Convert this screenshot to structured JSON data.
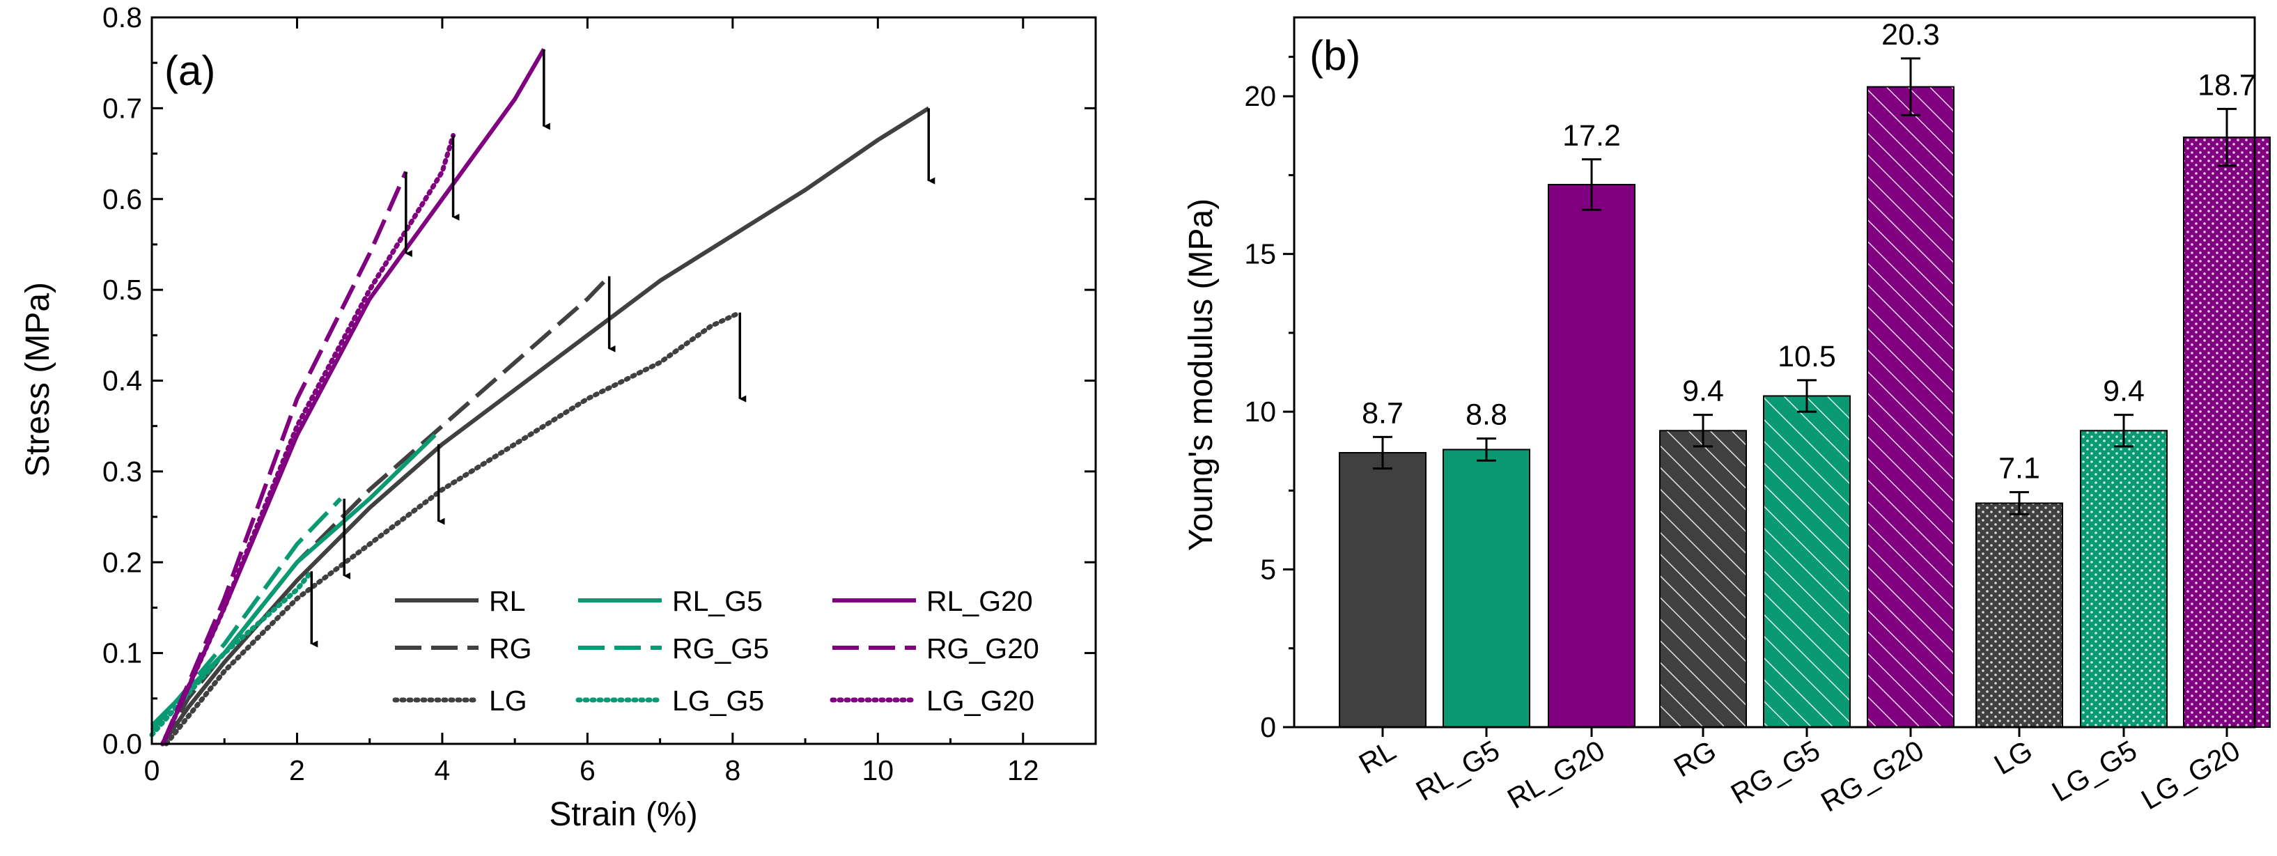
{
  "colors": {
    "RL": "#404040",
    "G5": "#0a9a73",
    "G20": "#800080",
    "arrow": "#000000"
  },
  "chart_data": [
    {
      "type": "line",
      "panel_label": "(a)",
      "xlabel": "Strain (%)",
      "ylabel": "Stress (MPa)",
      "xlim": [
        0,
        13
      ],
      "ylim": [
        0,
        0.8
      ],
      "xticks": [
        0,
        2,
        4,
        6,
        8,
        10,
        12
      ],
      "yticks": [
        0.0,
        0.1,
        0.2,
        0.3,
        0.4,
        0.5,
        0.6,
        0.7,
        0.8
      ],
      "xtick_labels": [
        "0",
        "2",
        "4",
        "6",
        "8",
        "10",
        "12"
      ],
      "ytick_labels": [
        "0.0",
        "0.1",
        "0.2",
        "0.3",
        "0.4",
        "0.5",
        "0.6",
        "0.7",
        "0.8"
      ],
      "legend_position": "bottom-right",
      "series": [
        {
          "name": "RL",
          "group": "RL",
          "dash": "solid",
          "x": [
            0.15,
            0.5,
            1,
            2,
            3,
            4,
            5,
            6,
            7,
            8,
            9,
            10,
            10.7
          ],
          "y": [
            0.0,
            0.04,
            0.09,
            0.18,
            0.26,
            0.33,
            0.39,
            0.45,
            0.51,
            0.56,
            0.61,
            0.665,
            0.7
          ]
        },
        {
          "name": "RG",
          "group": "RL",
          "dash": "dashed",
          "x": [
            0.15,
            0.5,
            1,
            2,
            3,
            4,
            5,
            6,
            6.3
          ],
          "y": [
            0.0,
            0.05,
            0.1,
            0.2,
            0.28,
            0.35,
            0.42,
            0.49,
            0.515
          ]
        },
        {
          "name": "LG",
          "group": "RL",
          "dash": "dotted",
          "x": [
            0.2,
            1,
            2,
            3,
            4,
            5,
            6,
            7,
            7.7,
            8.1
          ],
          "y": [
            0.0,
            0.08,
            0.16,
            0.22,
            0.28,
            0.33,
            0.38,
            0.42,
            0.46,
            0.475
          ]
        },
        {
          "name": "RL_G5",
          "group": "G5",
          "dash": "solid",
          "x": [
            0,
            1,
            2,
            3,
            3.9
          ],
          "y": [
            0.02,
            0.1,
            0.2,
            0.27,
            0.34
          ]
        },
        {
          "name": "RG_G5",
          "group": "G5",
          "dash": "dashed",
          "x": [
            0,
            1,
            2,
            2.6
          ],
          "y": [
            0.015,
            0.11,
            0.22,
            0.27
          ]
        },
        {
          "name": "LG_G5",
          "group": "G5",
          "dash": "dotted",
          "x": [
            0,
            1,
            2,
            2.2
          ],
          "y": [
            0.01,
            0.1,
            0.17,
            0.19
          ]
        },
        {
          "name": "RL_G20",
          "group": "G20",
          "dash": "solid",
          "x": [
            0.15,
            1,
            2,
            3,
            4,
            5,
            5.4
          ],
          "y": [
            0.0,
            0.15,
            0.34,
            0.49,
            0.6,
            0.71,
            0.765
          ]
        },
        {
          "name": "RG_G20",
          "group": "G20",
          "dash": "dashed",
          "x": [
            0.15,
            1,
            2,
            3,
            3.5
          ],
          "y": [
            0.0,
            0.16,
            0.38,
            0.54,
            0.63
          ]
        },
        {
          "name": "LG_G20",
          "group": "G20",
          "dash": "dotted",
          "x": [
            0.15,
            1,
            2,
            3,
            4,
            4.15
          ],
          "y": [
            0.0,
            0.15,
            0.35,
            0.5,
            0.63,
            0.67
          ]
        }
      ],
      "failure_arrows": [
        {
          "series": "RL",
          "x": 10.7,
          "y_start": 0.7,
          "y_end": 0.62
        },
        {
          "series": "RG",
          "x": 6.3,
          "y_start": 0.515,
          "y_end": 0.435
        },
        {
          "series": "LG",
          "x": 8.1,
          "y_start": 0.475,
          "y_end": 0.38
        },
        {
          "series": "RL_G5",
          "x": 3.95,
          "y_start": 0.33,
          "y_end": 0.245
        },
        {
          "series": "RG_G5",
          "x": 2.65,
          "y_start": 0.27,
          "y_end": 0.185
        },
        {
          "series": "LG_G5",
          "x": 2.2,
          "y_start": 0.19,
          "y_end": 0.11
        },
        {
          "series": "RL_G20",
          "x": 5.4,
          "y_start": 0.765,
          "y_end": 0.68
        },
        {
          "series": "RG_G20",
          "x": 3.5,
          "y_start": 0.63,
          "y_end": 0.54
        },
        {
          "series": "LG_G20",
          "x": 4.15,
          "y_start": 0.67,
          "y_end": 0.58
        }
      ]
    },
    {
      "type": "bar",
      "panel_label": "(b)",
      "xlabel": "",
      "ylabel": "Young's modulus (MPa)",
      "ylim": [
        0,
        22.5
      ],
      "yticks": [
        0,
        5,
        10,
        15,
        20
      ],
      "ytick_labels": [
        "0",
        "5",
        "10",
        "15",
        "20"
      ],
      "categories": [
        "RL",
        "RL_G5",
        "RL_G20",
        "RG",
        "RG_G5",
        "RG_G20",
        "LG",
        "LG_G5",
        "LG_G20"
      ],
      "values": [
        8.7,
        8.8,
        17.2,
        9.4,
        10.5,
        20.3,
        7.1,
        9.4,
        18.7
      ],
      "value_labels": [
        "8.7",
        "8.8",
        "17.2",
        "9.4",
        "10.5",
        "20.3",
        "7.1",
        "9.4",
        "18.7"
      ],
      "errors": [
        0.5,
        0.35,
        0.8,
        0.5,
        0.5,
        0.9,
        0.35,
        0.5,
        0.9
      ],
      "groups": [
        "RL",
        "G5",
        "G20",
        "RL",
        "G5",
        "G20",
        "RL",
        "G5",
        "G20"
      ],
      "patterns": [
        "solid",
        "solid",
        "solid",
        "hatch",
        "hatch",
        "hatch",
        "dots",
        "dots",
        "dots"
      ]
    }
  ]
}
